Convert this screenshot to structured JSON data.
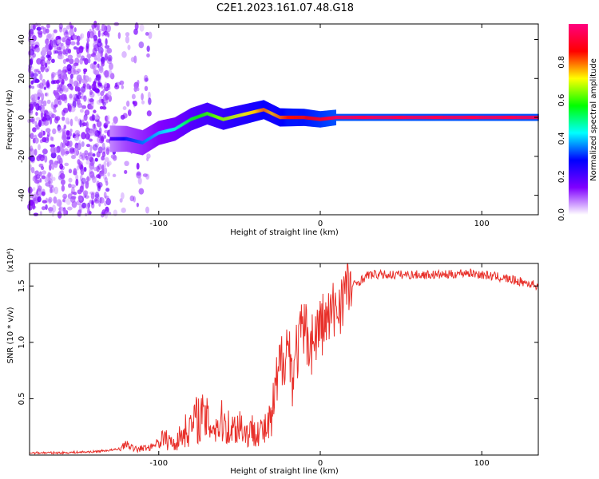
{
  "title": "C2E1.2023.161.07.48.G18",
  "colorbar": {
    "label": "Normalized spectral amplitude",
    "range": [
      0,
      1
    ],
    "ticks": [
      "0.0",
      "0.2",
      "0.4",
      "0.6",
      "0.8"
    ],
    "tick_values": [
      0.0,
      0.2,
      0.4,
      0.6,
      0.8
    ],
    "colormap": [
      "#ffffff",
      "#8000ff",
      "#0000ff",
      "#00ffff",
      "#00ff00",
      "#ffff00",
      "#ff0000",
      "#ff0080"
    ]
  },
  "chart_data": [
    {
      "type": "heatmap",
      "xlabel": "Height of straight line (km)",
      "ylabel": "Frequency (Hz)",
      "xlim": [
        -180,
        135
      ],
      "ylim": [
        -50,
        48
      ],
      "x_ticks": [
        -100,
        0,
        100
      ],
      "x_tick_labels": [
        "-100",
        "0",
        "100"
      ],
      "y_ticks": [
        -40,
        -20,
        0,
        20,
        40
      ],
      "y_tick_labels": [
        "-40",
        "-20",
        "0",
        "20",
        "40"
      ],
      "grid": false,
      "noise_region_x": [
        -180,
        -105
      ],
      "trace": {
        "x": [
          -130,
          -120,
          -110,
          -100,
          -90,
          -80,
          -70,
          -60,
          -50,
          -40,
          -35,
          -30,
          -25,
          -20,
          -10,
          0,
          10,
          20,
          60,
          100,
          135
        ],
        "y": [
          -11,
          -11,
          -13,
          -8,
          -6,
          -1,
          2,
          -1,
          1,
          3,
          4,
          2,
          0,
          0,
          0,
          -1,
          0,
          0,
          0,
          0,
          0
        ],
        "amplitude": [
          0.2,
          0.3,
          0.35,
          0.4,
          0.45,
          0.55,
          0.6,
          0.65,
          0.7,
          0.75,
          0.8,
          0.75,
          0.8,
          0.85,
          0.85,
          0.9,
          0.95,
          0.95,
          0.95,
          0.95,
          0.95
        ]
      }
    },
    {
      "type": "line",
      "xlabel": "Height of straight line (km)",
      "ylabel": "SNR (10 * v/v)",
      "y_scale_label": "(x10⁴)",
      "xlim": [
        -180,
        135
      ],
      "ylim": [
        0,
        1.7
      ],
      "x_ticks": [
        -100,
        0,
        100
      ],
      "x_tick_labels": [
        "-100",
        "0",
        "100"
      ],
      "y_ticks": [
        0.5,
        1.0,
        1.5
      ],
      "y_tick_labels": [
        "0.5",
        "1.0",
        "1.5"
      ],
      "grid": false,
      "series": [
        {
          "color": "#e8302a",
          "x": [
            -180,
            -160,
            -140,
            -125,
            -120,
            -115,
            -105,
            -98,
            -90,
            -85,
            -80,
            -75,
            -70,
            -65,
            -60,
            -55,
            -50,
            -45,
            -40,
            -35,
            -30,
            -27,
            -24,
            -20,
            -17,
            -15,
            -12,
            -10,
            -5,
            0,
            5,
            10,
            15,
            20,
            25,
            30,
            40,
            50,
            60,
            70,
            80,
            90,
            100,
            110,
            120,
            130,
            135
          ],
          "y": [
            0.02,
            0.02,
            0.03,
            0.05,
            0.1,
            0.05,
            0.07,
            0.15,
            0.1,
            0.2,
            0.25,
            0.35,
            0.3,
            0.25,
            0.3,
            0.22,
            0.28,
            0.18,
            0.25,
            0.2,
            0.3,
            0.6,
            0.85,
            1.0,
            0.7,
            0.9,
            1.05,
            1.1,
            1.0,
            1.15,
            1.2,
            1.3,
            1.45,
            1.5,
            1.55,
            1.6,
            1.6,
            1.6,
            1.6,
            1.6,
            1.6,
            1.62,
            1.6,
            1.58,
            1.55,
            1.52,
            1.5
          ]
        }
      ]
    }
  ]
}
